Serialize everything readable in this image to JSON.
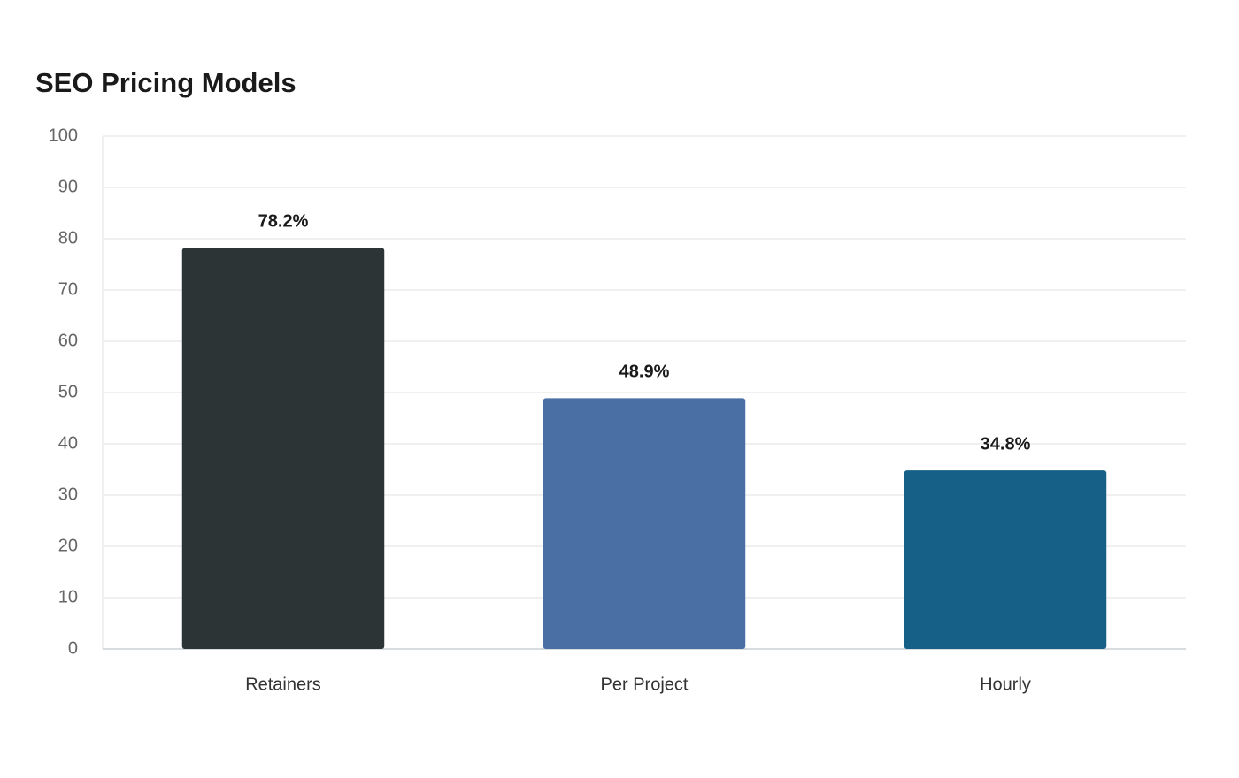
{
  "chart_data": {
    "type": "bar",
    "title": "SEO Pricing Models",
    "categories": [
      "Retainers",
      "Per Project",
      "Hourly"
    ],
    "values": [
      78.2,
      48.9,
      34.8
    ],
    "value_labels": [
      "78.2%",
      "48.9%",
      "34.8%"
    ],
    "colors": [
      "#2d3436",
      "#4a6fa5",
      "#166088"
    ],
    "ylim": [
      0,
      100
    ],
    "yticks": [
      0,
      10,
      20,
      30,
      40,
      50,
      60,
      70,
      80,
      90,
      100
    ],
    "grid": true
  }
}
